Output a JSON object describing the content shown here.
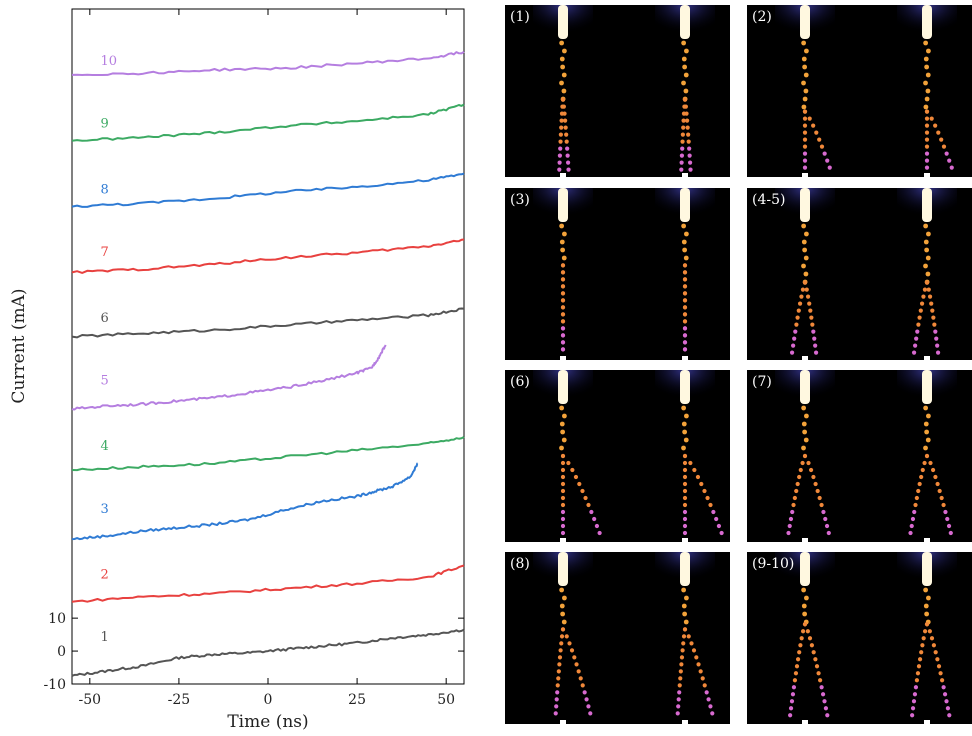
{
  "chart_data": {
    "type": "line",
    "xlabel": "Time (ns)",
    "ylabel": "Current (mA)",
    "xlim": [
      -55,
      55
    ],
    "ylim": [
      -10,
      195
    ],
    "x_ticks": [
      -50,
      -25,
      0,
      25,
      50
    ],
    "x_tick_labels": [
      "-50",
      "-25",
      "0",
      "25",
      "50"
    ],
    "y_ticks": [
      -10,
      0,
      10
    ],
    "y_tick_labels": [
      "-10",
      "0",
      "10"
    ],
    "grid": false,
    "legend": "none",
    "series": [
      {
        "name": "1",
        "color": "#555555",
        "label_x": -47,
        "label_y": 3,
        "x": [
          -55,
          -45,
          -35,
          -25,
          -15,
          -5,
          5,
          15,
          25,
          35,
          45,
          55
        ],
        "y": [
          -7.5,
          -6,
          -4.5,
          -2,
          -1,
          -0.5,
          0.5,
          1.5,
          2.5,
          4,
          5,
          6.5
        ]
      },
      {
        "name": "2",
        "color": "#e8413f",
        "label_x": -47,
        "label_y": 22,
        "x": [
          -55,
          -35,
          -15,
          5,
          25,
          45,
          55
        ],
        "y": [
          15,
          16.5,
          17.5,
          19,
          20.5,
          22.5,
          26
        ]
      },
      {
        "name": "3",
        "color": "#2f7bd4",
        "label_x": -47,
        "label_y": 42,
        "x": [
          -55,
          -45,
          -35,
          -25,
          -15,
          -5,
          5,
          15,
          25,
          30,
          35,
          40,
          42
        ],
        "y": [
          34,
          35,
          36.5,
          37.5,
          38.5,
          40,
          43,
          45.5,
          47,
          48.5,
          50,
          53,
          57
        ]
      },
      {
        "name": "4",
        "color": "#3caa63",
        "label_x": -47,
        "label_y": 61,
        "x": [
          -55,
          -35,
          -15,
          5,
          25,
          45,
          55
        ],
        "y": [
          55,
          56,
          57,
          59,
          61,
          63,
          65
        ]
      },
      {
        "name": "5",
        "color": "#b57ee0",
        "label_x": -47,
        "label_y": 81,
        "x": [
          -55,
          -45,
          -35,
          -25,
          -15,
          -5,
          5,
          15,
          25,
          29,
          31,
          33
        ],
        "y": [
          73.5,
          74.5,
          75,
          76,
          77,
          78.5,
          80,
          82,
          84.5,
          86,
          89,
          93
        ]
      },
      {
        "name": "6",
        "color": "#555555",
        "label_x": -47,
        "label_y": 100,
        "x": [
          -55,
          -35,
          -15,
          5,
          25,
          45,
          55
        ],
        "y": [
          95.5,
          96.5,
          97.5,
          99,
          100.5,
          102,
          104
        ]
      },
      {
        "name": "7",
        "color": "#e8413f",
        "label_x": -47,
        "label_y": 120,
        "x": [
          -55,
          -35,
          -15,
          5,
          25,
          45,
          55
        ],
        "y": [
          115,
          116,
          117.5,
          119.5,
          121,
          123,
          125
        ]
      },
      {
        "name": "8",
        "color": "#2f7bd4",
        "label_x": -47,
        "label_y": 139,
        "x": [
          -55,
          -35,
          -15,
          5,
          25,
          45,
          55
        ],
        "y": [
          135,
          136,
          137.5,
          139.5,
          141,
          143,
          145
        ]
      },
      {
        "name": "9",
        "color": "#3caa63",
        "label_x": -47,
        "label_y": 159,
        "x": [
          -55,
          -35,
          -15,
          5,
          25,
          45,
          55
        ],
        "y": [
          155,
          156,
          157.5,
          159.5,
          161,
          163,
          166
        ]
      },
      {
        "name": "10",
        "color": "#b57ee0",
        "label_x": -47,
        "label_y": 178,
        "x": [
          -55,
          -35,
          -15,
          5,
          25,
          45,
          55
        ],
        "y": [
          175,
          175.5,
          176.5,
          177,
          178.5,
          180,
          182
        ]
      }
    ]
  },
  "panels": [
    {
      "label": "(1)"
    },
    {
      "label": "(2)"
    },
    {
      "label": "(3)"
    },
    {
      "label": "(4-5)"
    },
    {
      "label": "(6)"
    },
    {
      "label": "(7)"
    },
    {
      "label": "(8)"
    },
    {
      "label": "(9-10)"
    }
  ]
}
